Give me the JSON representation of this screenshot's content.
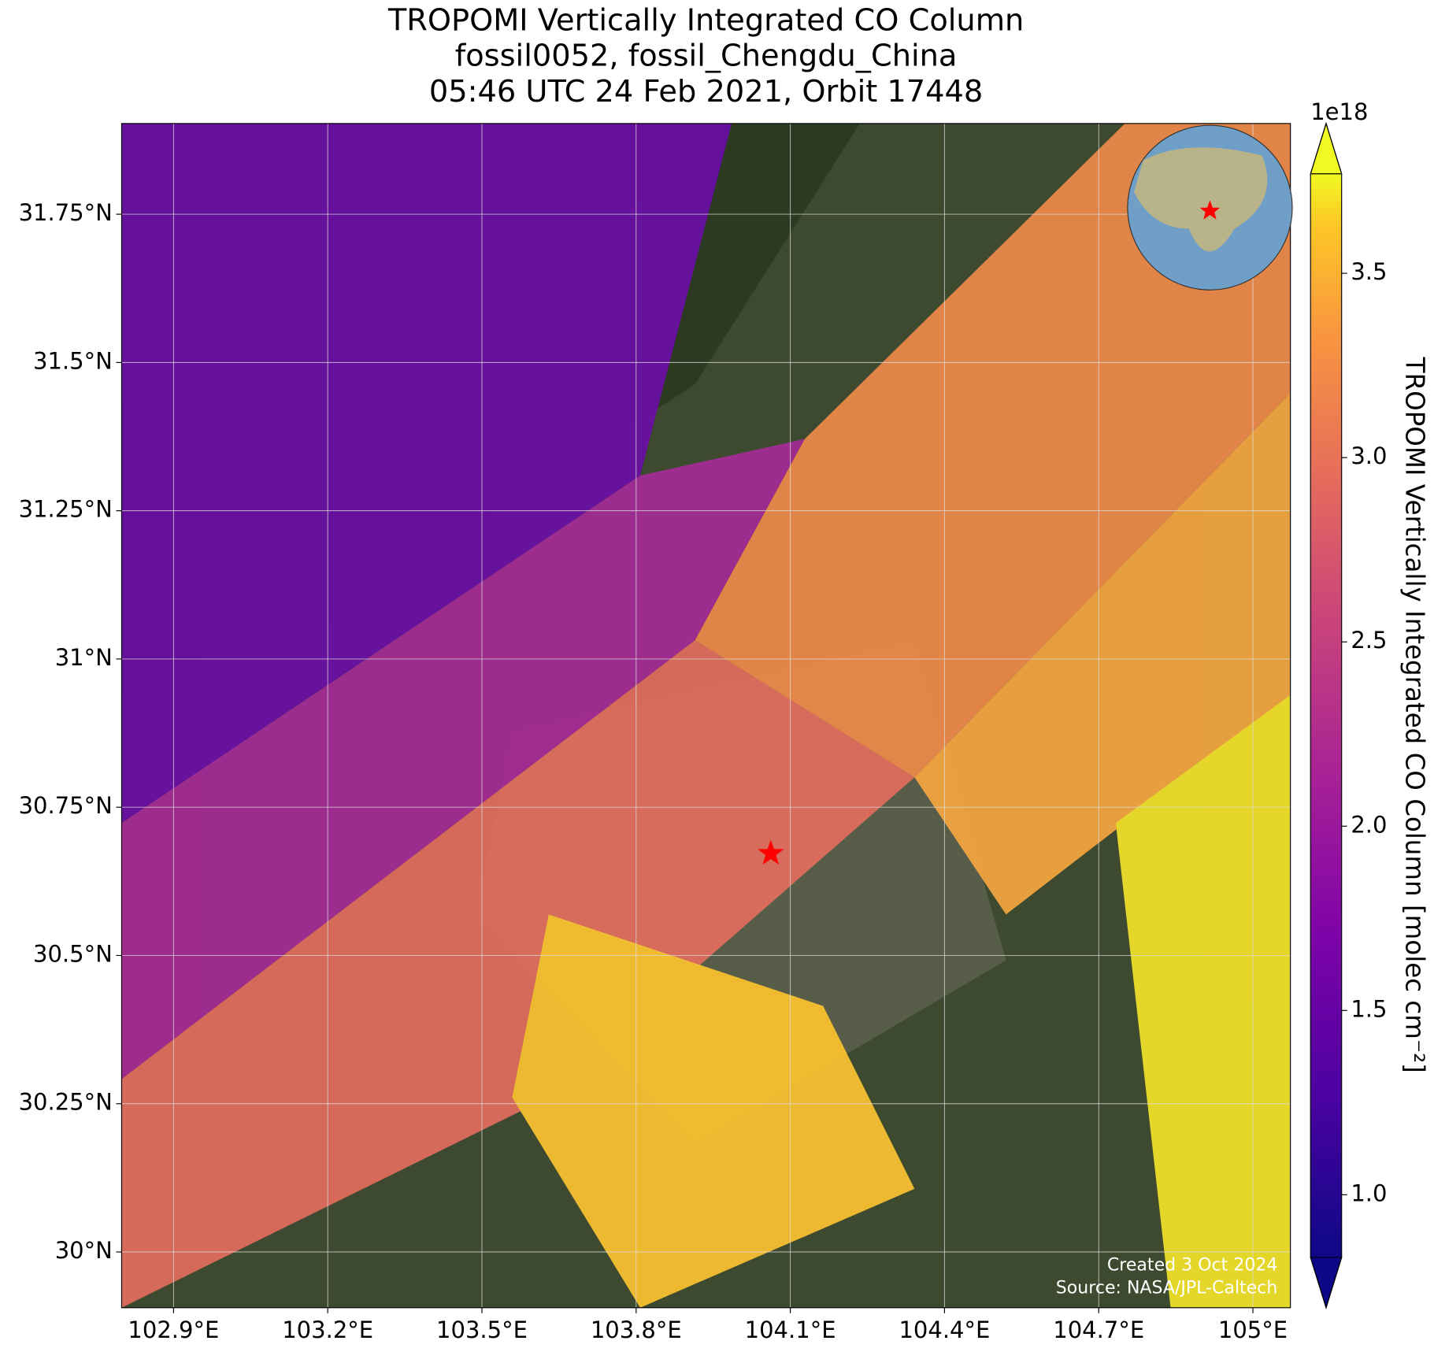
{
  "chart_data": {
    "type": "map",
    "title": [
      "TROPOMI Vertically Integrated CO Column",
      "fossil0052, fossil_Chengdu_China",
      "05:46 UTC 24 Feb 2021, Orbit 17448"
    ],
    "xlim": [
      102.799,
      105.073
    ],
    "ylim": [
      29.906,
      31.903
    ],
    "xticks": [
      {
        "value": 102.9,
        "label": "102.9°E"
      },
      {
        "value": 103.2,
        "label": "103.2°E"
      },
      {
        "value": 103.5,
        "label": "103.5°E"
      },
      {
        "value": 103.8,
        "label": "103.8°E"
      },
      {
        "value": 104.1,
        "label": "104.1°E"
      },
      {
        "value": 104.4,
        "label": "104.4°E"
      },
      {
        "value": 104.7,
        "label": "104.7°E"
      },
      {
        "value": 105.0,
        "label": "105°E"
      }
    ],
    "yticks": [
      {
        "value": 30.0,
        "label": "30°N"
      },
      {
        "value": 30.25,
        "label": "30.25°N"
      },
      {
        "value": 30.5,
        "label": "30.5°N"
      },
      {
        "value": 30.75,
        "label": "30.75°N"
      },
      {
        "value": 31.0,
        "label": "31°N"
      },
      {
        "value": 31.25,
        "label": "31.25°N"
      },
      {
        "value": 31.5,
        "label": "31.5°N"
      },
      {
        "value": 31.75,
        "label": "31.75°N"
      }
    ],
    "grid": true,
    "site": {
      "lon": 104.062,
      "lat": 30.672,
      "color": "#ff0000"
    },
    "colorbar": {
      "label": "TROPOMI Vertically Integrated CO Column [molec cm⁻²]",
      "multiplier": "1e18",
      "colormap": "plasma",
      "clim": [
        0.83,
        3.77
      ],
      "ticks": [
        {
          "value": 1.0,
          "label": "1.0"
        },
        {
          "value": 1.5,
          "label": "1.5"
        },
        {
          "value": 2.0,
          "label": "2.0"
        },
        {
          "value": 2.5,
          "label": "2.5"
        },
        {
          "value": 3.0,
          "label": "3.0"
        },
        {
          "value": 3.5,
          "label": "3.5"
        }
      ]
    },
    "credits": [
      "Created 3 Oct 2024",
      "Source: NASA/JPL-Caltech"
    ]
  }
}
